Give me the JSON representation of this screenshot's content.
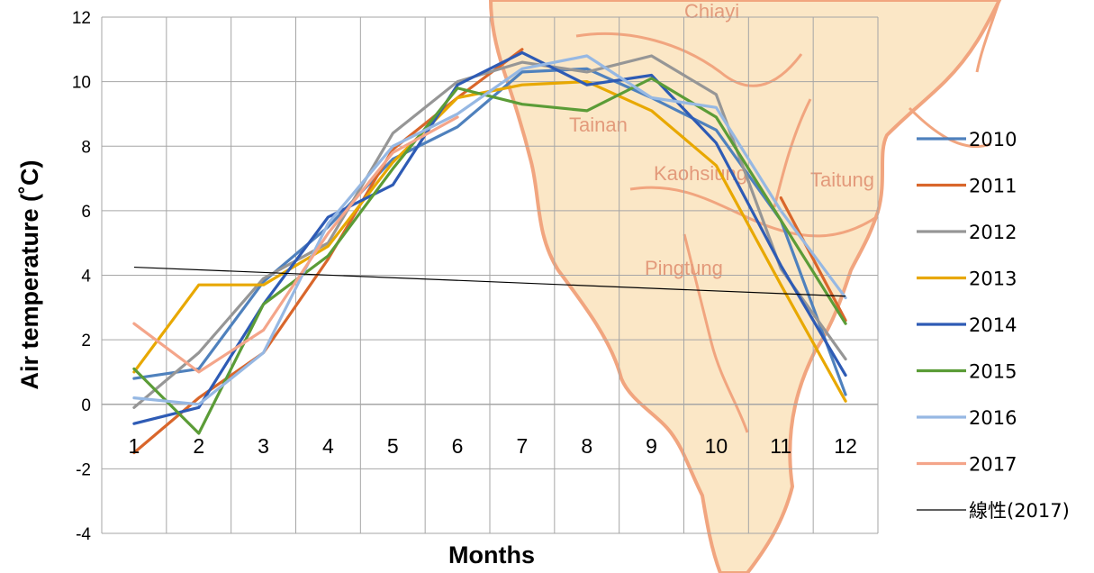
{
  "chart_data": {
    "type": "line",
    "title": "",
    "xlabel": "Months",
    "ylabel": "Air temperature (˚C)",
    "ylim": [
      -4,
      12
    ],
    "yticks": [
      -4,
      -2,
      0,
      2,
      4,
      6,
      8,
      10,
      12
    ],
    "categories": [
      "1",
      "2",
      "3",
      "4",
      "5",
      "6",
      "7",
      "8",
      "9",
      "10",
      "11",
      "12"
    ],
    "grid": true,
    "legend_position": "right",
    "series": [
      {
        "name": "2010",
        "color": "#4f81bd",
        "values": [
          0.8,
          1.1,
          3.8,
          5.5,
          7.6,
          8.6,
          10.3,
          10.4,
          9.5,
          8.5,
          5.7,
          0.3
        ]
      },
      {
        "name": "2011",
        "color": "#d9662b",
        "values": [
          -1.5,
          0.2,
          1.6,
          4.5,
          7.9,
          9.5,
          11.0,
          null,
          null,
          null,
          6.4,
          2.6
        ]
      },
      {
        "name": "2012",
        "color": "#969696",
        "values": [
          -0.1,
          1.6,
          3.9,
          5.0,
          8.4,
          10.0,
          10.6,
          10.3,
          10.8,
          9.6,
          4.2,
          1.4
        ]
      },
      {
        "name": "2013",
        "color": "#e8a800",
        "values": [
          1.0,
          3.7,
          3.7,
          4.9,
          7.5,
          9.5,
          9.9,
          10.0,
          9.1,
          7.4,
          3.7,
          0.1
        ]
      },
      {
        "name": "2014",
        "color": "#2e5bb5",
        "values": [
          -0.6,
          -0.1,
          3.1,
          5.8,
          6.8,
          9.9,
          10.9,
          9.9,
          10.2,
          8.1,
          4.3,
          0.9
        ]
      },
      {
        "name": "2015",
        "color": "#5b9c37",
        "values": [
          1.1,
          -0.9,
          3.1,
          4.6,
          7.3,
          9.8,
          9.3,
          9.1,
          10.1,
          8.9,
          5.7,
          2.5
        ]
      },
      {
        "name": "2016",
        "color": "#96b8e3",
        "values": [
          0.2,
          0.0,
          1.6,
          5.6,
          8.0,
          9.0,
          10.4,
          10.8,
          9.5,
          9.2,
          6.0,
          3.3
        ]
      },
      {
        "name": "2017",
        "color": "#f4a58a",
        "values": [
          2.5,
          1.0,
          2.3,
          5.3,
          7.8,
          8.9,
          null,
          null,
          null,
          null,
          null,
          null
        ]
      }
    ],
    "trendline": {
      "name": "線性(2017)",
      "color": "#000000",
      "start": 4.25,
      "end": 3.35
    },
    "background_labels": [
      "Chiayi",
      "Tainan",
      "Kaohsiung",
      "Taitung",
      "Pingtung"
    ]
  }
}
